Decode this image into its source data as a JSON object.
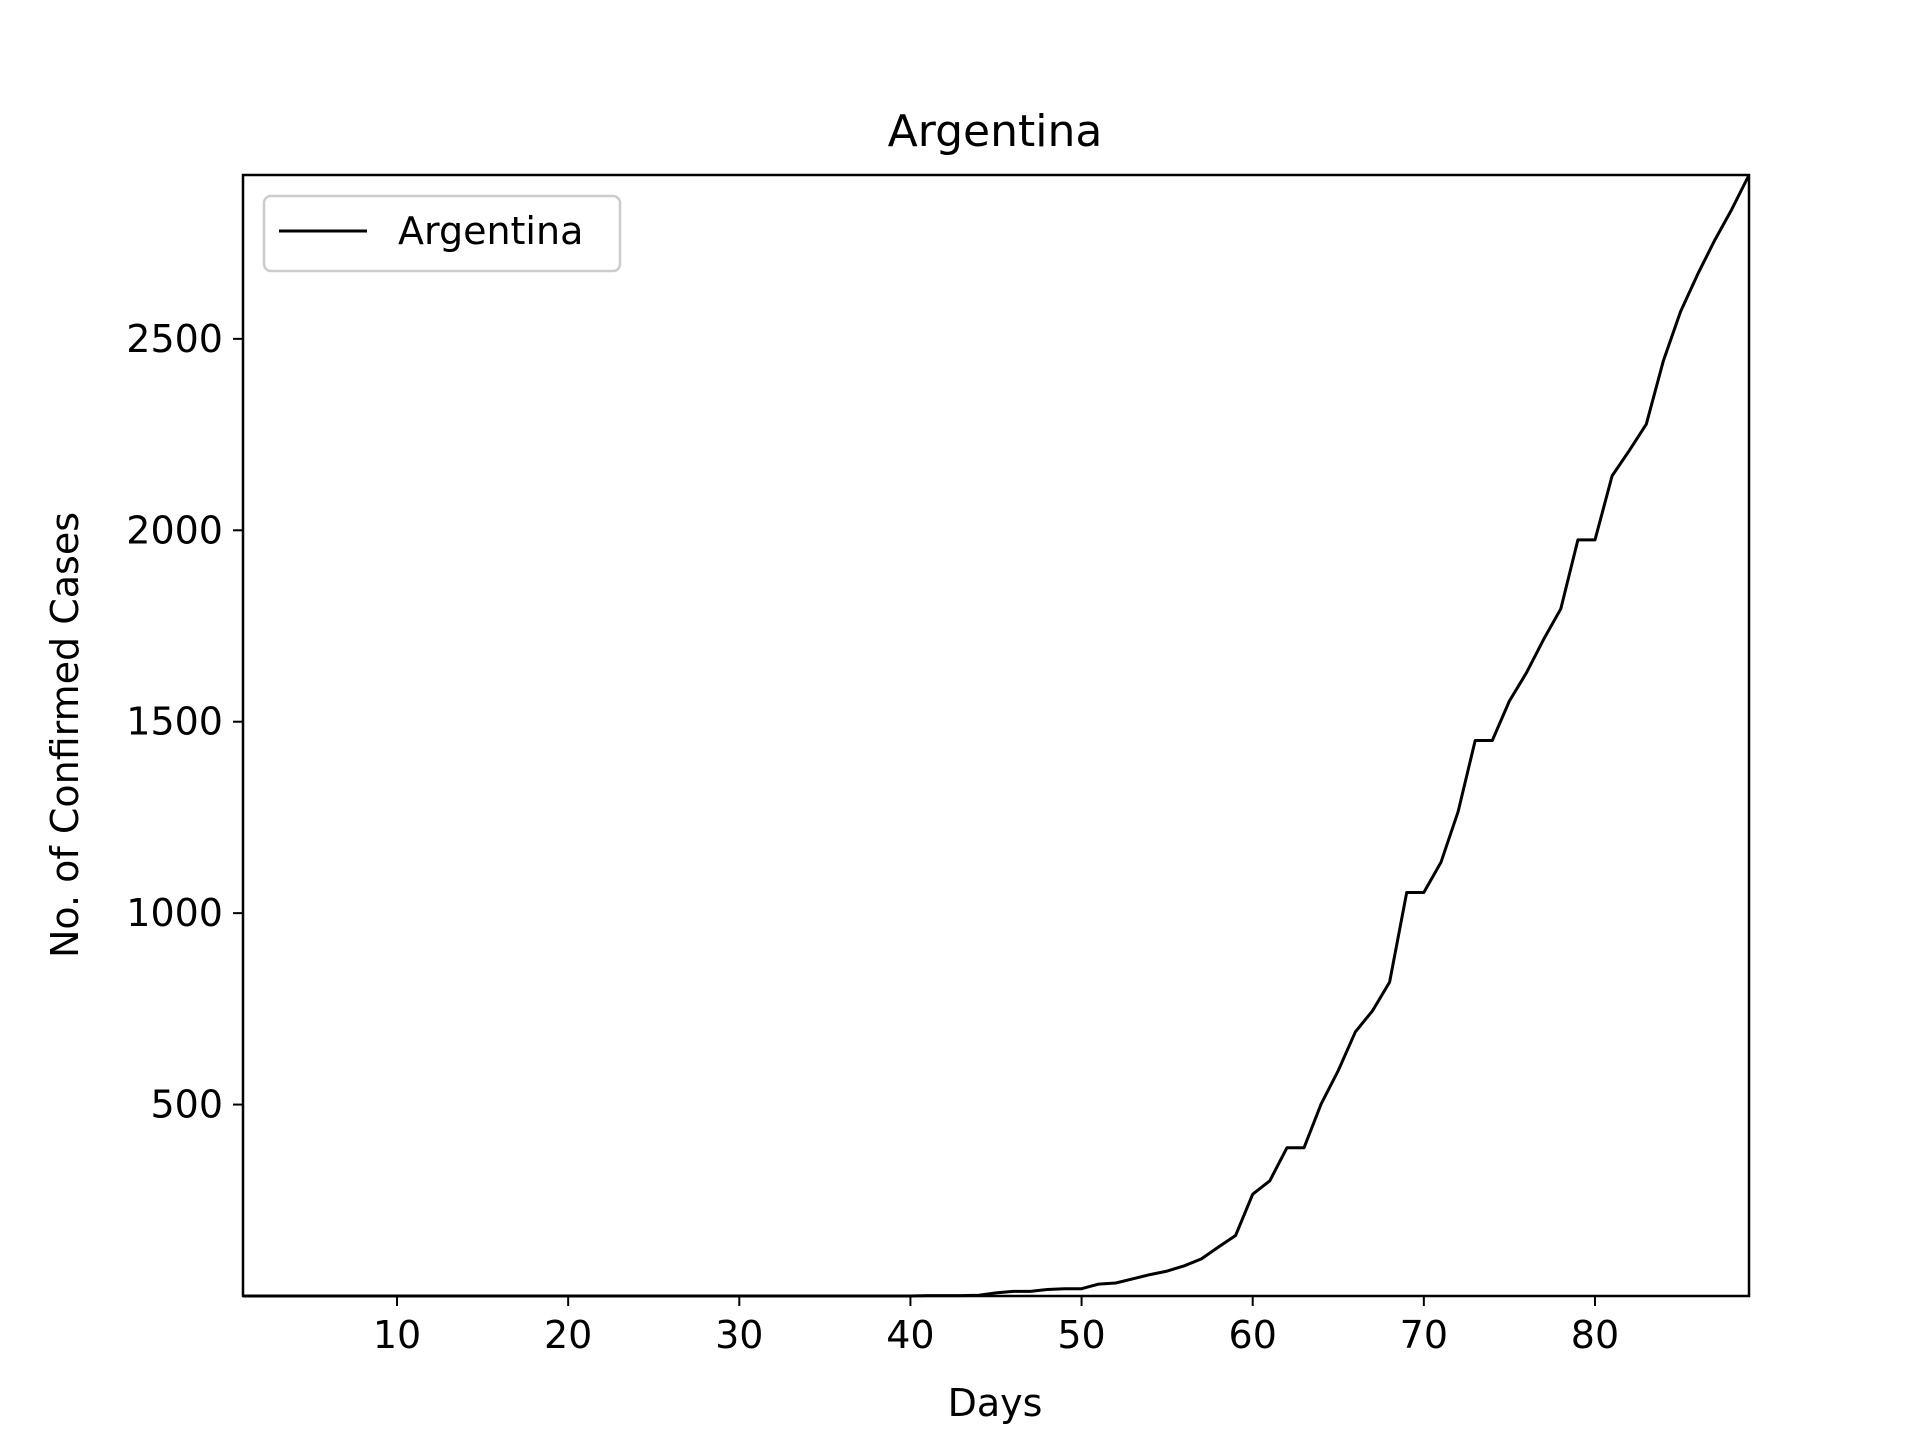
{
  "chart_data": {
    "type": "line",
    "title": "Argentina",
    "xlabel": "Days",
    "ylabel": "No. of Confirmed Cases",
    "xlim": [
      1,
      89
    ],
    "ylim": [
      0,
      2928
    ],
    "xticks": [
      10,
      20,
      30,
      40,
      50,
      60,
      70,
      80
    ],
    "yticks": [
      500,
      1000,
      1500,
      2000,
      2500
    ],
    "grid": false,
    "legend": {
      "position": "top-left",
      "entries": [
        "Argentina"
      ]
    },
    "colors": {
      "line": "#000000",
      "frame": "#000000",
      "legend_border": "#cccccc"
    },
    "series": [
      {
        "name": "Argentina",
        "x": [
          1,
          2,
          3,
          4,
          5,
          6,
          7,
          8,
          9,
          10,
          11,
          12,
          13,
          14,
          15,
          16,
          17,
          18,
          19,
          20,
          21,
          22,
          23,
          24,
          25,
          26,
          27,
          28,
          29,
          30,
          31,
          32,
          33,
          34,
          35,
          36,
          37,
          38,
          39,
          40,
          41,
          42,
          43,
          44,
          45,
          46,
          47,
          48,
          49,
          50,
          51,
          52,
          53,
          54,
          55,
          56,
          57,
          58,
          59,
          60,
          61,
          62,
          63,
          64,
          65,
          66,
          67,
          68,
          69,
          70,
          71,
          72,
          73,
          74,
          75,
          76,
          77,
          78,
          79,
          80,
          81,
          82,
          83,
          84,
          85,
          86,
          87,
          88,
          89
        ],
        "y": [
          0,
          0,
          0,
          0,
          0,
          0,
          0,
          0,
          0,
          0,
          0,
          0,
          0,
          0,
          0,
          0,
          0,
          0,
          0,
          0,
          0,
          0,
          0,
          0,
          0,
          0,
          0,
          0,
          0,
          0,
          0,
          0,
          0,
          0,
          0,
          0,
          0,
          0,
          0,
          0,
          1,
          1,
          1,
          2,
          8,
          12,
          12,
          17,
          19,
          19,
          31,
          34,
          45,
          56,
          65,
          79,
          97,
          128,
          158,
          266,
          301,
          387,
          387,
          502,
          589,
          690,
          745,
          820,
          1054,
          1054,
          1133,
          1265,
          1451,
          1451,
          1554,
          1628,
          1715,
          1795,
          1975,
          1975,
          2142,
          2208,
          2277,
          2443,
          2571,
          2669,
          2758,
          2839,
          2928
        ]
      }
    ]
  }
}
